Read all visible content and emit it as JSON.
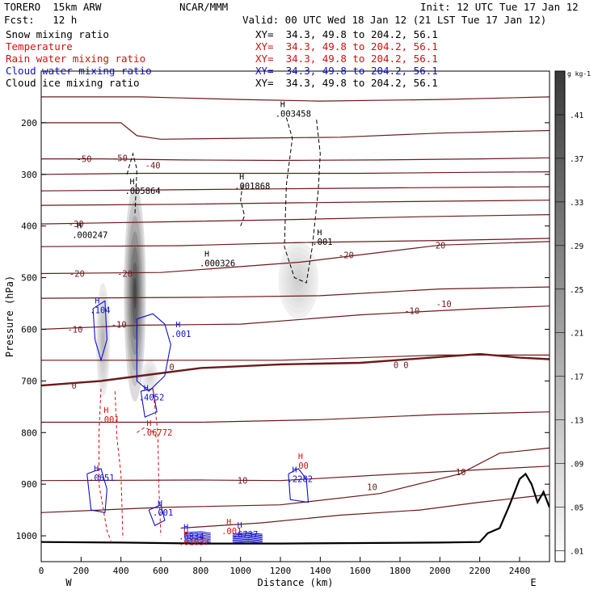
{
  "header": {
    "model": "TORERO  15km ARW",
    "org": "NCAR/MMM",
    "init": "Init: 12 UTC Tue 17 Jan 12",
    "fcst": "Fcst:   12 h",
    "valid": "Valid: 00 UTC Wed 18 Jan 12 (21 LST Tue 17 Jan 12)"
  },
  "fields": [
    {
      "label": "Snow mixing ratio",
      "xy": "XY=  34.3, 49.8 to 204.2, 56.1",
      "color": "#000000"
    },
    {
      "label": "Temperature",
      "xy": "XY=  34.3, 49.8 to 204.2, 56.1",
      "color": "#d01010"
    },
    {
      "label": "Rain water mixing ratio",
      "xy": "XY=  34.3, 49.8 to 204.2, 56.1",
      "color": "#d01010"
    },
    {
      "label": "Cloud water mixing ratio",
      "xy": "XY=  34.3, 49.8 to 204.2, 56.1",
      "color": "#1010d0"
    },
    {
      "label": "Cloud ice mixing ratio",
      "xy": "XY=  34.3, 49.8 to 204.2, 56.1",
      "color": "#000000"
    }
  ],
  "chart_data": {
    "type": "contour",
    "xlabel": "Distance (km)",
    "ylabel": "Pressure (hPa)",
    "xlim": [
      0,
      2550
    ],
    "ylim": [
      1050,
      100
    ],
    "x_ticks": [
      0,
      200,
      400,
      600,
      800,
      1000,
      1200,
      1400,
      1600,
      1800,
      2000,
      2200,
      2400
    ],
    "y_ticks": [
      200,
      300,
      400,
      500,
      600,
      700,
      800,
      900,
      1000
    ],
    "x_end_labels": {
      "left": "W",
      "right": "E"
    },
    "colorbar": {
      "unit": "g kg-1",
      "ticks": [
        ".01",
        ".05",
        ".09",
        ".13",
        ".17",
        ".21",
        ".25",
        ".29",
        ".33",
        ".37",
        ".41"
      ],
      "range": [
        0,
        0.45
      ]
    },
    "temperature_labels": [
      {
        "text": "-50",
        "x": 215,
        "y": 270
      },
      {
        "text": "-50",
        "x": 395,
        "y": 268
      },
      {
        "text": "-40",
        "x": 560,
        "y": 282
      },
      {
        "text": "-30",
        "x": 175,
        "y": 396
      },
      {
        "text": "-20",
        "x": 180,
        "y": 492
      },
      {
        "text": "-20",
        "x": 420,
        "y": 492
      },
      {
        "text": "-20",
        "x": 1530,
        "y": 456
      },
      {
        "text": "-20",
        "x": 1990,
        "y": 437
      },
      {
        "text": "-10",
        "x": 170,
        "y": 600
      },
      {
        "text": "-10",
        "x": 390,
        "y": 591
      },
      {
        "text": "-10",
        "x": 1860,
        "y": 564
      },
      {
        "text": "-10",
        "x": 2020,
        "y": 551
      },
      {
        "text": "0",
        "x": 165,
        "y": 709
      },
      {
        "text": "0",
        "x": 655,
        "y": 673
      },
      {
        "text": "0",
        "x": 1780,
        "y": 669
      },
      {
        "text": "0",
        "x": 1830,
        "y": 669
      },
      {
        "text": "10",
        "x": 1010,
        "y": 893
      },
      {
        "text": "10",
        "x": 1660,
        "y": 905
      },
      {
        "text": "10",
        "x": 2105,
        "y": 876
      }
    ],
    "max_labels": [
      {
        "field": "snow",
        "text": ".005864",
        "x": 460,
        "y": 335
      },
      {
        "field": "snow",
        "text": ".003458",
        "x": 1215,
        "y": 185
      },
      {
        "field": "snow",
        "text": ".001868",
        "x": 1010,
        "y": 325
      },
      {
        "field": "snow",
        "text": ".000247",
        "x": 195,
        "y": 420
      },
      {
        "field": "snow",
        "text": ".000326",
        "x": 835,
        "y": 475
      },
      {
        "field": "snow",
        "text": ".001",
        "x": 1400,
        "y": 433
      },
      {
        "field": "cloud_water",
        "text": ".104",
        "x": 285,
        "y": 566
      },
      {
        "field": "cloud_water",
        "text": ".001",
        "x": 690,
        "y": 612
      },
      {
        "field": "cloud_water",
        "text": ".4052",
        "x": 530,
        "y": 735
      },
      {
        "field": "cloud_water",
        "text": ".0651",
        "x": 280,
        "y": 890
      },
      {
        "field": "cloud_water",
        "text": ".2282",
        "x": 1275,
        "y": 893
      },
      {
        "field": "cloud_water",
        "text": ".001",
        "x": 600,
        "y": 958
      },
      {
        "field": "cloud_water",
        "text": ".6834",
        "x": 730,
        "y": 1004
      },
      {
        "field": "cloud_water",
        "text": ".6737",
        "x": 1000,
        "y": 1000
      },
      {
        "field": "rain",
        "text": ".001",
        "x": 330,
        "y": 778
      },
      {
        "field": "rain",
        "text": ".06772",
        "x": 545,
        "y": 803
      },
      {
        "field": "rain",
        "text": ".00",
        "x": 1305,
        "y": 867
      },
      {
        "field": "rain",
        "text": ".001",
        "x": 945,
        "y": 994
      },
      {
        "field": "rain",
        "text": ".01037",
        "x": 730,
        "y": 1015
      }
    ],
    "snow_shading": [
      {
        "x": 470,
        "y": 530,
        "rx": 55,
        "ry": 210,
        "peak": 0.41
      },
      {
        "x": 310,
        "y": 620,
        "rx": 35,
        "ry": 110,
        "peak": 0.15
      },
      {
        "x": 1290,
        "y": 505,
        "rx": 100,
        "ry": 75,
        "peak": 0.09
      },
      {
        "x": 545,
        "y": 690,
        "rx": 40,
        "ry": 30,
        "peak": 0.08
      }
    ]
  }
}
